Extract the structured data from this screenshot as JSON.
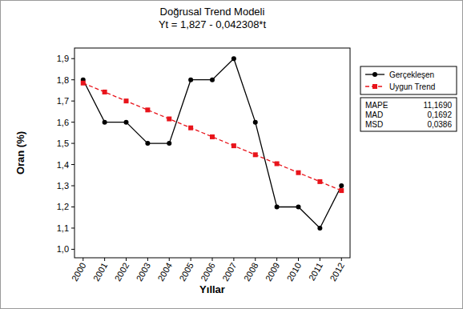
{
  "chart_data": {
    "type": "line",
    "title": "Doğrusal Trend Modeli",
    "subtitle": "Yt = 1,827 - 0,042308*t",
    "x_label": "Yıllar",
    "y_label": "Oran (%)",
    "categories": [
      "2000",
      "2001",
      "2002",
      "2003",
      "2004",
      "2005",
      "2006",
      "2007",
      "2008",
      "2009",
      "2010",
      "2011",
      "2012"
    ],
    "series": [
      {
        "name": "Gerçekleşen",
        "color": "#000000",
        "marker": "circle",
        "line_style": "solid",
        "values": [
          1.8,
          1.6,
          1.6,
          1.5,
          1.5,
          1.8,
          1.8,
          1.9,
          1.6,
          1.2,
          1.2,
          1.1,
          1.3
        ]
      },
      {
        "name": "Uygun Trend",
        "color": "#e8141b",
        "marker": "square",
        "line_style": "dashed",
        "values": [
          1.7847,
          1.7424,
          1.7001,
          1.6578,
          1.6155,
          1.5732,
          1.5309,
          1.4886,
          1.4463,
          1.404,
          1.3617,
          1.3194,
          1.2771
        ]
      }
    ],
    "ylim": [
      0.96,
      1.95
    ],
    "yticks": [
      {
        "value": 1.0,
        "label": "1,0"
      },
      {
        "value": 1.1,
        "label": "1,1"
      },
      {
        "value": 1.2,
        "label": "1,2"
      },
      {
        "value": 1.3,
        "label": "1,3"
      },
      {
        "value": 1.4,
        "label": "1,4"
      },
      {
        "value": 1.5,
        "label": "1,5"
      },
      {
        "value": 1.6,
        "label": "1,6"
      },
      {
        "value": 1.7,
        "label": "1,7"
      },
      {
        "value": 1.8,
        "label": "1,8"
      },
      {
        "value": 1.9,
        "label": "1,9"
      }
    ],
    "grid": false,
    "legend": "right",
    "accuracy_measures": [
      {
        "name": "MAPE",
        "value": 11.169,
        "label": "11,1690"
      },
      {
        "name": "MAD",
        "value": 0.1692,
        "label": "0,1692"
      },
      {
        "name": "MSD",
        "value": 0.0386,
        "label": "0,0386"
      }
    ]
  }
}
